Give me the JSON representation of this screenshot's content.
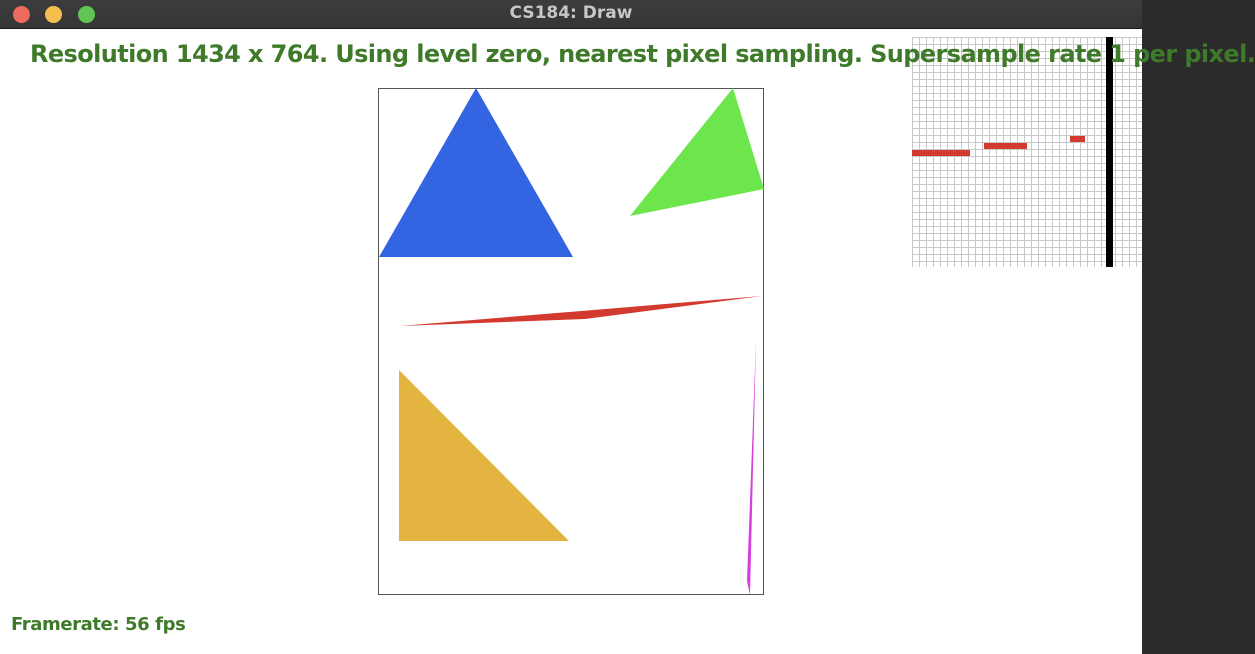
{
  "window": {
    "title": "CS184: Draw"
  },
  "status": {
    "resolution_line": "Resolution 1434 x 764. Using level zero, nearest pixel sampling. Supersample rate 1 per pixel.",
    "framerate": "Framerate: 56 fps"
  },
  "colors": {
    "status_text": "#3e7a2a",
    "blue_triangle": "#3364e2",
    "green_triangle": "#6ce64c",
    "red_sliver": "#d33a2f",
    "yellow_triangle": "#e3b540",
    "magenta_sliver": "#d73ee0"
  },
  "scene": {
    "shapes": [
      {
        "name": "blue-triangle",
        "color": "blue_triangle"
      },
      {
        "name": "green-triangle",
        "color": "green_triangle"
      },
      {
        "name": "red-thin-triangle",
        "color": "red_sliver"
      },
      {
        "name": "yellow-triangle",
        "color": "yellow_triangle"
      },
      {
        "name": "magenta-thin-triangle",
        "color": "magenta_sliver"
      }
    ]
  },
  "zoom_inset": {
    "description_icon": "pixel-zoom-grid"
  }
}
